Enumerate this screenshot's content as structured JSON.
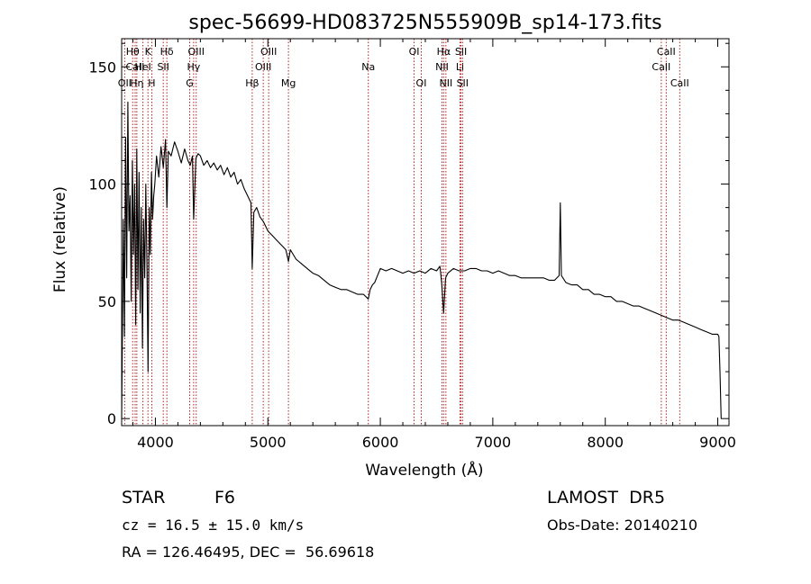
{
  "chart_data": {
    "type": "line",
    "title": "spec-56699-HD083725N555909B_sp14-173.fits",
    "xlabel": "Wavelength (Å)",
    "ylabel": "Flux (relative)",
    "xlim": [
      3700,
      9100
    ],
    "ylim": [
      -3,
      162
    ],
    "xticks": [
      4000,
      5000,
      6000,
      7000,
      8000,
      9000
    ],
    "yticks": [
      0,
      50,
      100,
      150
    ],
    "grid": false,
    "colors": {
      "spectrum": "#000000",
      "lines": "#b22222"
    },
    "series": [
      {
        "x": [
          3700,
          3715,
          3725,
          3735,
          3745,
          3755,
          3765,
          3775,
          3785,
          3795,
          3805,
          3815,
          3825,
          3835,
          3845,
          3855,
          3865,
          3875,
          3885,
          3895,
          3905,
          3915,
          3925,
          3935,
          3945,
          3955,
          3965,
          3975,
          3985,
          3995,
          4010,
          4030,
          4050,
          4070,
          4090,
          4102,
          4115,
          4140,
          4170,
          4200,
          4230,
          4260,
          4290,
          4310,
          4330,
          4340,
          4360,
          4380,
          4400,
          4430,
          4460,
          4490,
          4520,
          4550,
          4580,
          4610,
          4640,
          4670,
          4700,
          4730,
          4760,
          4790,
          4820,
          4850,
          4861,
          4875,
          4900,
          4930,
          4960,
          5000,
          5040,
          5080,
          5120,
          5160,
          5183,
          5200,
          5250,
          5300,
          5350,
          5400,
          5450,
          5500,
          5550,
          5600,
          5650,
          5700,
          5750,
          5800,
          5850,
          5893,
          5910,
          5930,
          5950,
          6000,
          6050,
          6100,
          6150,
          6200,
          6250,
          6300,
          6350,
          6400,
          6450,
          6500,
          6530,
          6545,
          6563,
          6580,
          6600,
          6650,
          6700,
          6750,
          6800,
          6850,
          6900,
          6950,
          7000,
          7050,
          7100,
          7150,
          7200,
          7250,
          7300,
          7350,
          7400,
          7450,
          7500,
          7550,
          7590,
          7600,
          7610,
          7650,
          7700,
          7750,
          7800,
          7850,
          7900,
          7950,
          8000,
          8050,
          8100,
          8150,
          8200,
          8250,
          8300,
          8350,
          8400,
          8450,
          8500,
          8550,
          8600,
          8650,
          8700,
          8750,
          8800,
          8850,
          8900,
          8950,
          9000,
          9010,
          9020,
          9030
        ],
        "y": [
          0,
          85,
          35,
          120,
          60,
          135,
          80,
          95,
          50,
          110,
          70,
          100,
          40,
          115,
          55,
          105,
          45,
          90,
          30,
          85,
          60,
          100,
          65,
          20,
          90,
          70,
          105,
          85,
          95,
          100,
          112,
          103,
          116,
          107,
          119,
          90,
          114,
          112,
          118,
          114,
          109,
          115,
          110,
          108,
          112,
          85,
          111,
          113,
          112,
          108,
          110,
          107,
          109,
          106,
          108,
          104,
          107,
          103,
          105,
          100,
          102,
          98,
          95,
          92,
          64,
          88,
          90,
          86,
          84,
          80,
          78,
          76,
          74,
          72,
          67,
          72,
          68,
          66,
          64,
          62,
          61,
          59,
          57,
          56,
          55,
          55,
          54,
          53,
          53,
          51,
          55,
          57,
          58,
          64,
          63,
          64,
          63,
          62,
          63,
          62,
          63,
          62,
          64,
          63,
          65,
          58,
          45,
          60,
          62,
          64,
          63,
          63,
          64,
          64,
          63,
          63,
          62,
          63,
          62,
          61,
          61,
          60,
          60,
          60,
          60,
          60,
          59,
          59,
          61,
          92,
          61,
          58,
          57,
          57,
          55,
          55,
          53,
          53,
          52,
          52,
          50,
          50,
          49,
          48,
          48,
          47,
          46,
          45,
          44,
          43,
          42,
          42,
          41,
          40,
          39,
          38,
          37,
          36,
          36,
          35,
          20,
          0
        ]
      }
    ],
    "lines": [
      {
        "name": "Hθ",
        "wl": 3798,
        "row": 0
      },
      {
        "name": "CaII",
        "wl": 3820,
        "row": 1
      },
      {
        "name": "OII",
        "wl": 3727,
        "row": 2
      },
      {
        "name": "Hη",
        "wl": 3835,
        "row": 2
      },
      {
        "name": "K",
        "wl": 3934,
        "row": 0
      },
      {
        "name": "HeI",
        "wl": 3889,
        "row": 1
      },
      {
        "name": "H",
        "wl": 3968,
        "row": 2
      },
      {
        "name": "Hδ",
        "wl": 4102,
        "row": 0
      },
      {
        "name": "SII",
        "wl": 4070,
        "row": 1
      },
      {
        "name": "OIII",
        "wl": 4363,
        "row": 0
      },
      {
        "name": "Hγ",
        "wl": 4340,
        "row": 1
      },
      {
        "name": "G",
        "wl": 4305,
        "row": 2
      },
      {
        "name": "Hβ",
        "wl": 4861,
        "row": 2
      },
      {
        "name": "OIII",
        "wl": 5007,
        "row": 0
      },
      {
        "name": "OIII",
        "wl": 4959,
        "row": 1
      },
      {
        "name": "Mg",
        "wl": 5183,
        "row": 2
      },
      {
        "name": "Na",
        "wl": 5893,
        "row": 1
      },
      {
        "name": "OI",
        "wl": 6300,
        "row": 0
      },
      {
        "name": "OI",
        "wl": 6364,
        "row": 2
      },
      {
        "name": "Hα",
        "wl": 6563,
        "row": 0
      },
      {
        "name": "NII",
        "wl": 6548,
        "row": 1
      },
      {
        "name": "NII",
        "wl": 6583,
        "row": 2
      },
      {
        "name": "SII",
        "wl": 6717,
        "row": 0
      },
      {
        "name": "Li",
        "wl": 6708,
        "row": 1
      },
      {
        "name": "SII",
        "wl": 6731,
        "row": 2
      },
      {
        "name": "CaII",
        "wl": 8542,
        "row": 0
      },
      {
        "name": "CaII",
        "wl": 8498,
        "row": 1
      },
      {
        "name": "CaII",
        "wl": 8662,
        "row": 2
      }
    ]
  },
  "info": {
    "object_class": "STAR",
    "subclass": "F6",
    "survey": "LAMOST  DR5",
    "redshift": "cz = 16.5 ± 15.0 km/s",
    "obs_date": "Obs-Date: 20140210",
    "coords": "RA = 126.46495, DEC =  56.69618"
  }
}
